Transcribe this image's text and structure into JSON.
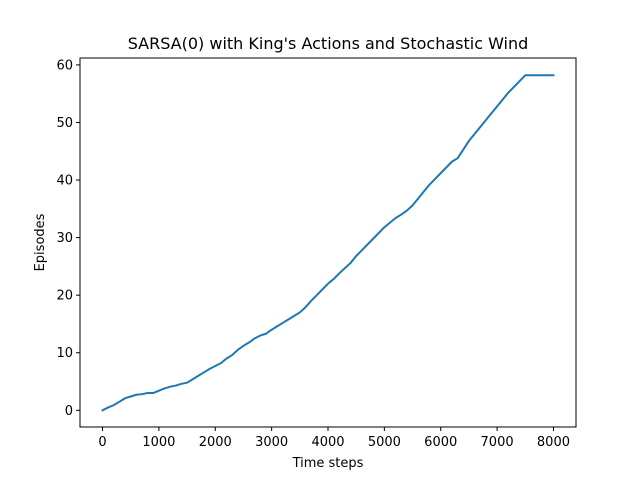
{
  "chart_data": {
    "type": "line",
    "title": "SARSA(0) with King's Actions and Stochastic Wind",
    "xlabel": "Time steps",
    "ylabel": "Episodes",
    "xlim": [
      -400,
      8400
    ],
    "ylim": [
      -2.9,
      61.2
    ],
    "xticks": [
      0,
      1000,
      2000,
      3000,
      4000,
      5000,
      6000,
      7000,
      8000
    ],
    "yticks": [
      0,
      10,
      20,
      30,
      40,
      50,
      60
    ],
    "grid": false,
    "legend": "none",
    "series": [
      {
        "color": "#1f77b4",
        "x": [
          0,
          100,
          200,
          300,
          400,
          500,
          600,
          700,
          800,
          900,
          1000,
          1100,
          1200,
          1300,
          1400,
          1500,
          1600,
          1700,
          1800,
          1900,
          2000,
          2100,
          2200,
          2300,
          2400,
          2500,
          2600,
          2700,
          2800,
          2900,
          3000,
          3100,
          3200,
          3300,
          3400,
          3500,
          3600,
          3700,
          3800,
          3900,
          4000,
          4100,
          4200,
          4300,
          4400,
          4500,
          4600,
          4700,
          4800,
          4900,
          5000,
          5100,
          5200,
          5300,
          5400,
          5500,
          5600,
          5700,
          5800,
          5900,
          6000,
          6100,
          6200,
          6300,
          6400,
          6500,
          6600,
          6700,
          6800,
          6900,
          7000,
          7100,
          7200,
          7300,
          7400,
          7500,
          7600,
          7700,
          7800,
          7900,
          8000
        ],
        "values": [
          0,
          0.5,
          0.9,
          1.5,
          2.1,
          2.4,
          2.7,
          2.8,
          3.0,
          3.0,
          3.4,
          3.8,
          4.1,
          4.3,
          4.6,
          4.8,
          5.4,
          6.0,
          6.6,
          7.2,
          7.7,
          8.2,
          9.0,
          9.6,
          10.5,
          11.2,
          11.8,
          12.5,
          13.0,
          13.3,
          14.0,
          14.6,
          15.2,
          15.8,
          16.4,
          17.0,
          17.9,
          19.0,
          20.0,
          21.0,
          22.0,
          22.8,
          23.8,
          24.7,
          25.6,
          26.8,
          27.8,
          28.8,
          29.8,
          30.8,
          31.8,
          32.6,
          33.4,
          34.0,
          34.7,
          35.6,
          36.8,
          38.0,
          39.2,
          40.2,
          41.2,
          42.2,
          43.2,
          43.8,
          45.3,
          46.8,
          48.0,
          49.2,
          50.4,
          51.6,
          52.8,
          54.0,
          55.2,
          56.2,
          57.2,
          58.2,
          58.2,
          58.2,
          58.2,
          58.2,
          58.2
        ]
      }
    ]
  }
}
